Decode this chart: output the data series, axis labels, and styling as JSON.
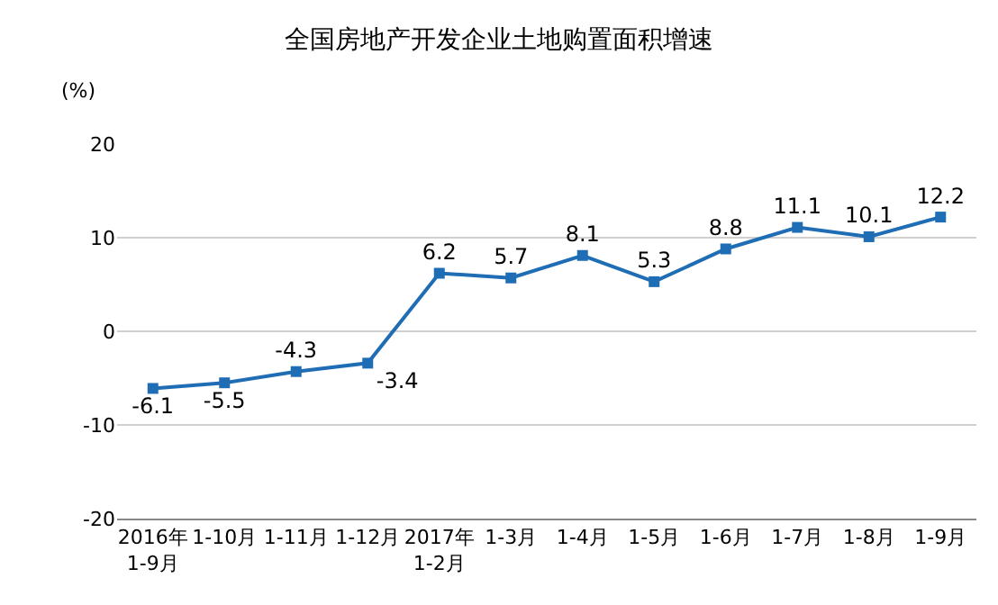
{
  "chart_data": {
    "type": "line",
    "title": "全国房地产开发企业土地购置面积增速",
    "ylabel": "(%)",
    "categories": [
      "2016年\n1-9月",
      "1-10月",
      "1-11月",
      "1-12月",
      "2017年\n1-2月",
      "1-3月",
      "1-4月",
      "1-5月",
      "1-6月",
      "1-7月",
      "1-8月",
      "1-9月"
    ],
    "series": [
      {
        "color": "#1f6db5",
        "values": [
          -6.1,
          -5.5,
          -4.3,
          -3.4,
          6.2,
          5.7,
          8.1,
          5.3,
          8.8,
          11.1,
          10.1,
          12.2
        ]
      }
    ],
    "ylim": [
      -20,
      20
    ],
    "yticks": [
      -20,
      -10,
      0,
      10,
      20
    ],
    "grid": "y",
    "marker": "square",
    "line_style": "solid",
    "data_labels": true,
    "legend": false
  }
}
